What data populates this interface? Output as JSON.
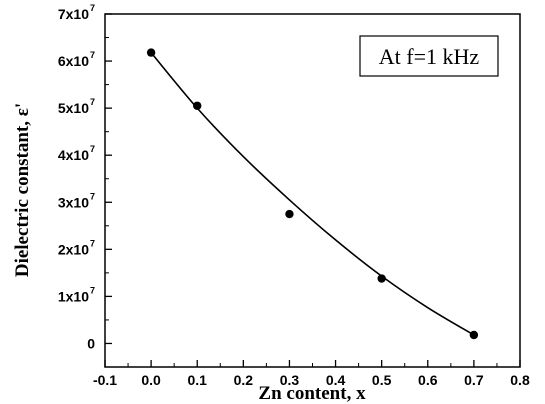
{
  "chart_data": {
    "type": "scatter",
    "xlabel": "Zn content, x",
    "ylabel": "Dielectric constant, ε'",
    "annotation": "At f=1 kHz",
    "xlim": [
      -0.1,
      0.8
    ],
    "ylim": [
      -0.5,
      7
    ],
    "x_ticks": [
      "-0.1",
      "0.0",
      "0.1",
      "0.2",
      "0.3",
      "0.4",
      "0.5",
      "0.6",
      "0.7",
      "0.8"
    ],
    "y_ticks": [
      {
        "value": 0,
        "label": "0",
        "exp": ""
      },
      {
        "value": 1,
        "label": "1x10",
        "exp": "7"
      },
      {
        "value": 2,
        "label": "2x10",
        "exp": "7"
      },
      {
        "value": 3,
        "label": "3x10",
        "exp": "7"
      },
      {
        "value": 4,
        "label": "4x10",
        "exp": "7"
      },
      {
        "value": 5,
        "label": "5x10",
        "exp": "7"
      },
      {
        "value": 6,
        "label": "6x10",
        "exp": "7"
      },
      {
        "value": 7,
        "label": "7x10",
        "exp": "7"
      }
    ],
    "y_unit_scale": 10000000,
    "points": [
      {
        "x": 0.0,
        "y": 6.18
      },
      {
        "x": 0.1,
        "y": 5.05
      },
      {
        "x": 0.3,
        "y": 2.75
      },
      {
        "x": 0.5,
        "y": 1.38
      },
      {
        "x": 0.7,
        "y": 0.18
      }
    ],
    "fit_curve": [
      {
        "x": 0.0,
        "y": 6.18
      },
      {
        "x": 0.1,
        "y": 5.0
      },
      {
        "x": 0.2,
        "y": 3.97
      },
      {
        "x": 0.3,
        "y": 3.05
      },
      {
        "x": 0.4,
        "y": 2.2
      },
      {
        "x": 0.5,
        "y": 1.43
      },
      {
        "x": 0.6,
        "y": 0.76
      },
      {
        "x": 0.7,
        "y": 0.18
      }
    ],
    "grid": false,
    "legend": "none"
  }
}
